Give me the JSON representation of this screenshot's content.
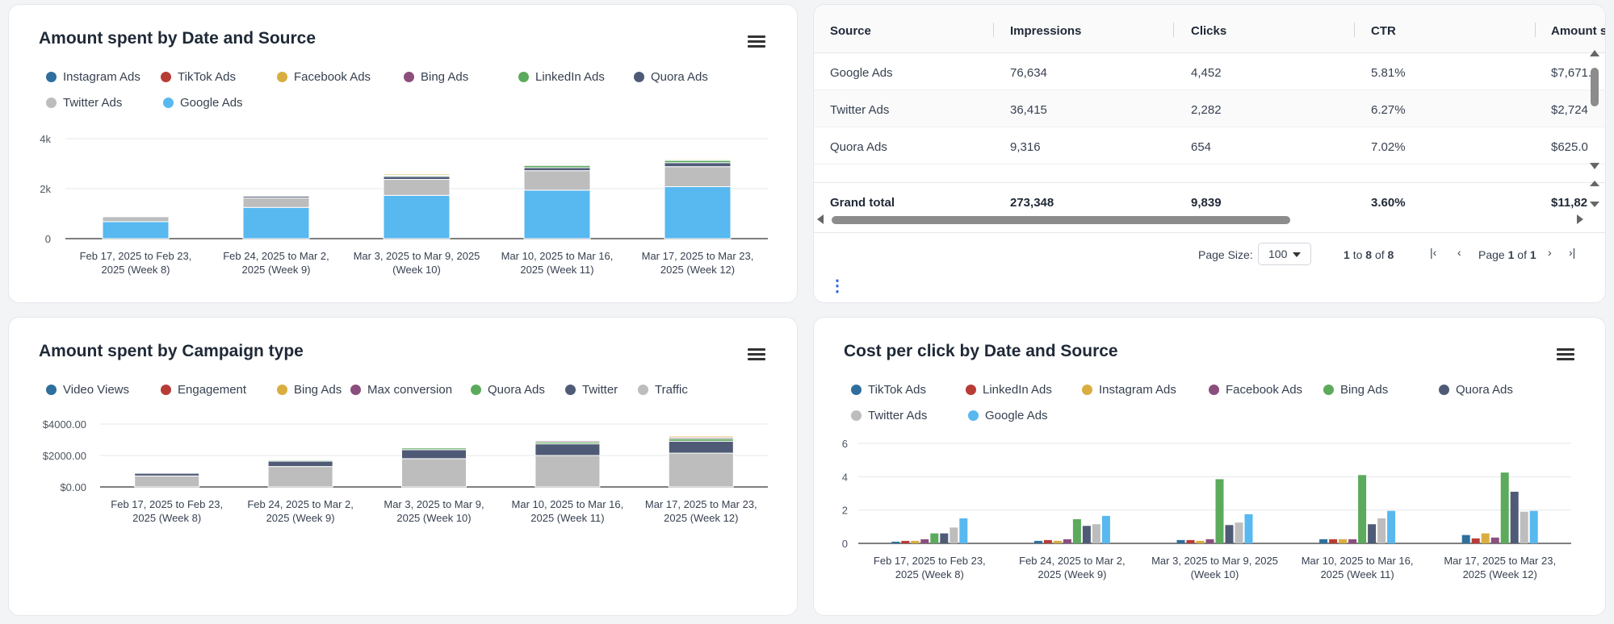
{
  "colors": {
    "blue_dark": "#2e6f9e",
    "red": "#b83c36",
    "yellow": "#d9ad3f",
    "purple": "#8a4f7d",
    "green": "#5caa5c",
    "slate": "#4f5b76",
    "gray": "#bdbdbd",
    "sky": "#58b8f0"
  },
  "card1": {
    "title": "Amount spent by Date and Source",
    "legend": [
      {
        "name": "Instagram Ads",
        "color": "#2e6f9e"
      },
      {
        "name": "TikTok Ads",
        "color": "#b83c36"
      },
      {
        "name": "Facebook Ads",
        "color": "#d9ad3f"
      },
      {
        "name": "Bing Ads",
        "color": "#8a4f7d"
      },
      {
        "name": "LinkedIn Ads",
        "color": "#5caa5c"
      },
      {
        "name": "Quora Ads",
        "color": "#4f5b76"
      },
      {
        "name": "Twitter Ads",
        "color": "#bdbdbd"
      },
      {
        "name": "Google Ads",
        "color": "#58b8f0"
      }
    ]
  },
  "card2": {
    "columns": [
      "Source",
      "Impressions",
      "Clicks",
      "CTR",
      "Amount s"
    ],
    "rows": [
      [
        "Google Ads",
        "76,634",
        "4,452",
        "5.81%",
        "$7,671."
      ],
      [
        "Twitter Ads",
        "36,415",
        "2,282",
        "6.27%",
        "$2,724"
      ],
      [
        "Quora Ads",
        "9,316",
        "654",
        "7.02%",
        "$625.0"
      ]
    ],
    "total": [
      "Grand total",
      "273,348",
      "9,839",
      "3.60%",
      "$11,82"
    ],
    "page_size_label": "Page Size:",
    "page_size_value": "100",
    "rows_range_prefix": "1",
    "rows_range_to": "to",
    "rows_range_end": "8",
    "rows_range_of": "of",
    "rows_range_total": "8",
    "page_word": "Page",
    "page_current": "1",
    "page_of": "of",
    "page_total": "1",
    "more_menu": "⋮"
  },
  "card3": {
    "title": "Amount spent by Campaign type",
    "legend": [
      {
        "name": "Video Views",
        "color": "#2e6f9e"
      },
      {
        "name": "Engagement",
        "color": "#b83c36"
      },
      {
        "name": "Bing Ads",
        "color": "#d9ad3f"
      },
      {
        "name": "Max conversion",
        "color": "#8a4f7d"
      },
      {
        "name": "Quora Ads",
        "color": "#5caa5c"
      },
      {
        "name": "Twitter",
        "color": "#4f5b76"
      },
      {
        "name": "Traffic",
        "color": "#bdbdbd"
      }
    ]
  },
  "card4": {
    "title": "Cost per click by Date and Source",
    "legend": [
      {
        "name": "TikTok Ads",
        "color": "#2e6f9e"
      },
      {
        "name": "LinkedIn Ads",
        "color": "#b83c36"
      },
      {
        "name": "Instagram Ads",
        "color": "#d9ad3f"
      },
      {
        "name": "Facebook Ads",
        "color": "#8a4f7d"
      },
      {
        "name": "Bing Ads",
        "color": "#5caa5c"
      },
      {
        "name": "Quora Ads",
        "color": "#4f5b76"
      },
      {
        "name": "Twitter Ads",
        "color": "#bdbdbd"
      },
      {
        "name": "Google Ads",
        "color": "#58b8f0"
      }
    ]
  },
  "chart_data": [
    {
      "type": "bar",
      "stacked": true,
      "title": "Amount spent by Date and Source",
      "categories": [
        "Feb 17, 2025 to Feb 23, 2025 (Week 8)",
        "Feb 24, 2025 to Mar 2, 2025 (Week 9)",
        "Mar 3, 2025 to Mar 9, 2025 (Week 10)",
        "Mar 10, 2025 to Mar 16, 2025 (Week 11)",
        "Mar 17, 2025 to Mar 23, 2025 (Week 12)"
      ],
      "category_lines": [
        [
          "Feb 17, 2025 to Feb 23,",
          "2025 (Week 8)"
        ],
        [
          "Feb 24, 2025 to Mar 2,",
          "2025 (Week 9)"
        ],
        [
          "Mar 3, 2025 to Mar 9, 2025",
          "(Week 10)"
        ],
        [
          "Mar 10, 2025 to Mar 16,",
          "2025 (Week 11)"
        ],
        [
          "Mar 17, 2025 to Mar 23,",
          "2025 (Week 12)"
        ]
      ],
      "yticks": [
        "0",
        "2k",
        "4k"
      ],
      "ylim": [
        0,
        4000
      ],
      "series": [
        {
          "name": "Google Ads",
          "color": "#58b8f0",
          "values": [
            680,
            1250,
            1730,
            1940,
            2080
          ]
        },
        {
          "name": "Twitter Ads",
          "color": "#bdbdbd",
          "values": [
            200,
            380,
            640,
            780,
            800
          ]
        },
        {
          "name": "Quora Ads",
          "color": "#4f5b76",
          "values": [
            30,
            70,
            120,
            120,
            160
          ]
        },
        {
          "name": "LinkedIn Ads",
          "color": "#5caa5c",
          "values": [
            10,
            20,
            40,
            90,
            90
          ]
        },
        {
          "name": "Bing Ads",
          "color": "#8a4f7d",
          "values": [
            5,
            10,
            20,
            20,
            30
          ]
        },
        {
          "name": "Facebook Ads",
          "color": "#d9ad3f",
          "values": [
            5,
            10,
            50,
            10,
            40
          ]
        },
        {
          "name": "TikTok Ads",
          "color": "#b83c36",
          "values": [
            5,
            5,
            5,
            10,
            10
          ]
        },
        {
          "name": "Instagram Ads",
          "color": "#2e6f9e",
          "values": [
            5,
            5,
            5,
            10,
            10
          ]
        }
      ]
    },
    {
      "type": "bar",
      "stacked": true,
      "title": "Amount spent by Campaign type",
      "categories": [
        "Feb 17, 2025 to Feb 23, 2025 (Week 8)",
        "Feb 24, 2025 to Mar 2, 2025 (Week 9)",
        "Mar 3, 2025 to Mar 9, 2025 (Week 10)",
        "Mar 10, 2025 to Mar 16, 2025 (Week 11)",
        "Mar 17, 2025 to Mar 23, 2025 (Week 12)"
      ],
      "category_lines": [
        [
          "Feb 17, 2025 to Feb 23,",
          "2025 (Week 8)"
        ],
        [
          "Feb 24, 2025 to Mar 2,",
          "2025 (Week 9)"
        ],
        [
          "Mar 3, 2025 to Mar 9,",
          "2025 (Week 10)"
        ],
        [
          "Mar 10, 2025 to Mar 16,",
          "2025 (Week 11)"
        ],
        [
          "Mar 17, 2025 to Mar 23,",
          "2025 (Week 12)"
        ]
      ],
      "yticks": [
        "$0.00",
        "$2000.00",
        "$4000.00"
      ],
      "ylim": [
        0,
        4000
      ],
      "series": [
        {
          "name": "Traffic",
          "color": "#bdbdbd",
          "values": [
            700,
            1300,
            1800,
            2000,
            2150
          ]
        },
        {
          "name": "Twitter",
          "color": "#4f5b76",
          "values": [
            170,
            340,
            570,
            740,
            760
          ]
        },
        {
          "name": "Quora Ads",
          "color": "#5caa5c",
          "values": [
            40,
            70,
            110,
            120,
            160
          ]
        },
        {
          "name": "Max conversion",
          "color": "#8a4f7d",
          "values": [
            10,
            20,
            50,
            80,
            80
          ]
        },
        {
          "name": "Bing Ads",
          "color": "#d9ad3f",
          "values": [
            5,
            10,
            40,
            40,
            80
          ]
        },
        {
          "name": "Engagement",
          "color": "#b83c36",
          "values": [
            5,
            5,
            10,
            30,
            20
          ]
        },
        {
          "name": "Video Views",
          "color": "#2e6f9e",
          "values": [
            5,
            5,
            5,
            10,
            10
          ]
        }
      ]
    },
    {
      "type": "bar",
      "stacked": false,
      "title": "Cost per click by Date and Source",
      "categories": [
        "Feb 17, 2025 to Feb 23, 2025 (Week 8)",
        "Feb 24, 2025 to Mar 2, 2025 (Week 9)",
        "Mar 3, 2025 to Mar 9, 2025 (Week 10)",
        "Mar 10, 2025 to Mar 16, 2025 (Week 11)",
        "Mar 17, 2025 to Mar 23, 2025 (Week 12)"
      ],
      "category_lines": [
        [
          "Feb 17, 2025 to Feb 23,",
          "2025 (Week 8)"
        ],
        [
          "Feb 24, 2025 to Mar 2,",
          "2025 (Week 9)"
        ],
        [
          "Mar 3, 2025 to Mar 9, 2025",
          "(Week 10)"
        ],
        [
          "Mar 10, 2025 to Mar 16,",
          "2025 (Week 11)"
        ],
        [
          "Mar 17, 2025 to Mar 23,",
          "2025 (Week 12)"
        ]
      ],
      "yticks": [
        "0",
        "2",
        "4",
        "6"
      ],
      "ylim": [
        0,
        6
      ],
      "series": [
        {
          "name": "TikTok Ads",
          "color": "#2e6f9e",
          "values": [
            0.1,
            0.15,
            0.2,
            0.25,
            0.5
          ]
        },
        {
          "name": "LinkedIn Ads",
          "color": "#b83c36",
          "values": [
            0.15,
            0.2,
            0.2,
            0.25,
            0.3
          ]
        },
        {
          "name": "Instagram Ads",
          "color": "#d9ad3f",
          "values": [
            0.15,
            0.15,
            0.15,
            0.25,
            0.6
          ]
        },
        {
          "name": "Facebook Ads",
          "color": "#8a4f7d",
          "values": [
            0.25,
            0.25,
            0.25,
            0.25,
            0.35
          ]
        },
        {
          "name": "Bing Ads",
          "color": "#5caa5c",
          "values": [
            0.6,
            1.45,
            3.85,
            4.1,
            4.25
          ]
        },
        {
          "name": "Quora Ads",
          "color": "#4f5b76",
          "values": [
            0.6,
            1.05,
            1.1,
            1.15,
            3.1
          ]
        },
        {
          "name": "Twitter Ads",
          "color": "#bdbdbd",
          "values": [
            0.95,
            1.15,
            1.25,
            1.5,
            1.9
          ]
        },
        {
          "name": "Google Ads",
          "color": "#58b8f0",
          "values": [
            1.5,
            1.65,
            1.75,
            1.95,
            1.95
          ]
        }
      ]
    }
  ]
}
